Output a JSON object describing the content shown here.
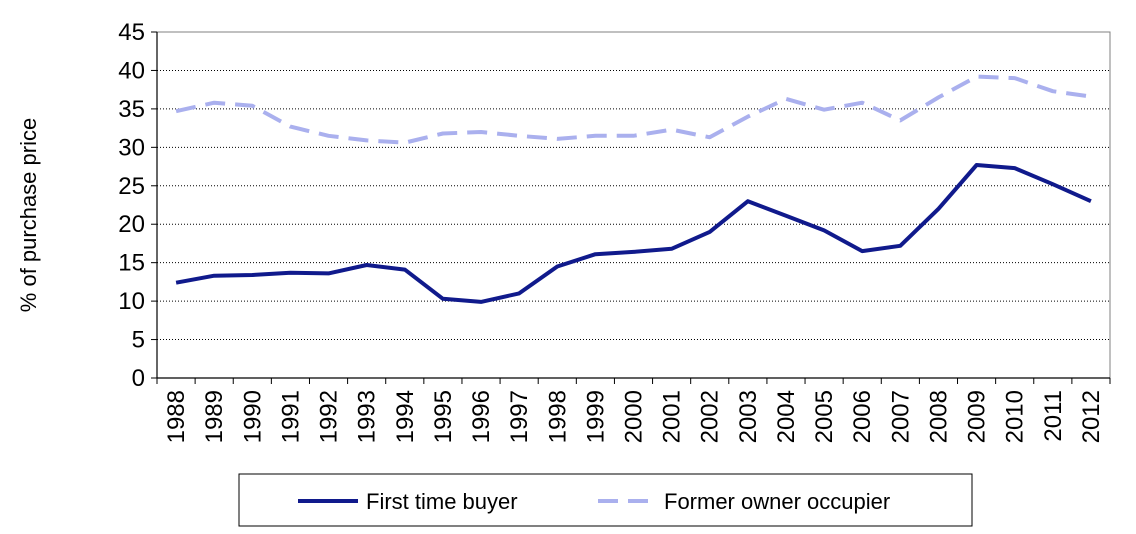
{
  "chart_data": {
    "type": "line",
    "ylabel": "% of purchase price",
    "xlabel": "",
    "ylim": [
      0,
      45
    ],
    "yticks": [
      0,
      5,
      10,
      15,
      20,
      25,
      30,
      35,
      40,
      45
    ],
    "grid": "horizontal dotted",
    "legend_position": "bottom",
    "x": [
      "1988",
      "1989",
      "1990",
      "1991",
      "1992",
      "1993",
      "1994",
      "1995",
      "1996",
      "1997",
      "1998",
      "1999",
      "2000",
      "2001",
      "2002",
      "2003",
      "2004",
      "2005",
      "2006",
      "2007",
      "2008",
      "2009",
      "2010",
      "2011",
      "2012"
    ],
    "series": [
      {
        "name": "First time buyer",
        "color": "#101a8c",
        "style": "solid",
        "values": [
          12.4,
          13.3,
          13.4,
          13.7,
          13.6,
          14.7,
          14.1,
          10.3,
          9.9,
          11.0,
          14.5,
          16.1,
          16.4,
          16.8,
          19.0,
          23.0,
          21.1,
          19.2,
          16.5,
          17.2,
          22.0,
          27.7,
          27.3,
          25.2,
          23.0
        ]
      },
      {
        "name": "Former owner occupier",
        "color": "#aab0ee",
        "style": "dashed",
        "values": [
          34.7,
          35.8,
          35.4,
          32.7,
          31.5,
          30.9,
          30.6,
          31.8,
          32.0,
          31.5,
          31.1,
          31.5,
          31.5,
          32.3,
          31.3,
          34.0,
          36.3,
          34.9,
          35.8,
          33.5,
          36.5,
          39.2,
          39.0,
          37.3,
          36.6
        ]
      }
    ]
  }
}
